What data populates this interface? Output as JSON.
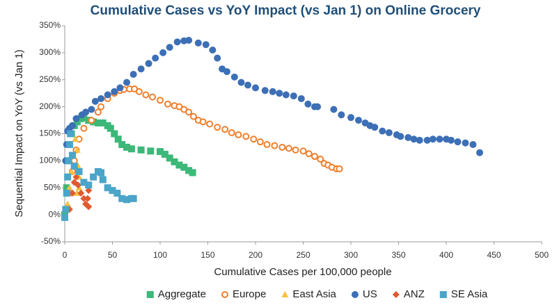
{
  "chart_data": {
    "type": "scatter",
    "title": "Cumulative Cases vs YoY Impact (vs Jan 1) on Online Grocery",
    "x_label": "Cumulative Cases per 100,000 people",
    "y_label": "Sequential Impact on YoY (vs Jan 1)",
    "xlim": [
      0,
      500
    ],
    "xticks": [
      0,
      50,
      100,
      150,
      200,
      250,
      300,
      350,
      400,
      450,
      500
    ],
    "ylim": [
      -50,
      350
    ],
    "yticks": [
      {
        "value": -50,
        "label": "-50%"
      },
      {
        "value": 0,
        "label": "0%"
      },
      {
        "value": 50,
        "label": "50%"
      },
      {
        "value": 100,
        "label": "100%"
      },
      {
        "value": 150,
        "label": "150%"
      },
      {
        "value": 200,
        "label": "200%"
      },
      {
        "value": 250,
        "label": "250%"
      },
      {
        "value": 300,
        "label": "300%"
      },
      {
        "value": 350,
        "label": "350%"
      }
    ],
    "grid": false,
    "legend": "bottom",
    "series": [
      {
        "name": "Aggregate",
        "color": "#3cb878",
        "marker": "square",
        "x": [
          0,
          2,
          3,
          5,
          7,
          10,
          13,
          17,
          20,
          25,
          30,
          35,
          40,
          45,
          48,
          52,
          56,
          60,
          65,
          70,
          80,
          90,
          100,
          105,
          110,
          115,
          120,
          125,
          130,
          134
        ],
        "values": [
          0,
          50,
          100,
          130,
          150,
          165,
          172,
          178,
          180,
          175,
          172,
          170,
          170,
          165,
          160,
          150,
          140,
          130,
          125,
          122,
          120,
          118,
          117,
          112,
          105,
          98,
          92,
          88,
          82,
          78
        ]
      },
      {
        "name": "Europe",
        "color": "#f07f2c",
        "marker": "circle-open",
        "x": [
          2,
          5,
          8,
          10,
          12,
          15,
          20,
          28,
          35,
          38,
          45,
          52,
          58,
          62,
          68,
          73,
          78,
          85,
          92,
          100,
          108,
          115,
          120,
          125,
          130,
          135,
          140,
          145,
          152,
          160,
          168,
          175,
          182,
          190,
          198,
          205,
          212,
          220,
          228,
          235,
          242,
          250,
          256,
          262,
          268,
          272,
          276,
          280,
          285,
          288
        ],
        "values": [
          10,
          40,
          80,
          100,
          120,
          140,
          160,
          175,
          190,
          200,
          215,
          225,
          230,
          232,
          233,
          233,
          228,
          222,
          218,
          212,
          205,
          202,
          200,
          195,
          190,
          182,
          175,
          172,
          168,
          162,
          158,
          152,
          148,
          145,
          140,
          135,
          130,
          128,
          125,
          123,
          120,
          118,
          113,
          108,
          103,
          95,
          92,
          88,
          85,
          85
        ]
      },
      {
        "name": "East Asia",
        "color": "#f5c242",
        "marker": "triangle",
        "x": [
          3,
          5,
          7,
          9,
          11,
          13,
          14,
          15,
          15,
          13
        ],
        "values": [
          20,
          50,
          80,
          110,
          140,
          120,
          90,
          70,
          50,
          40
        ]
      },
      {
        "name": "US",
        "color": "#3c6fb6",
        "marker": "circle",
        "x": [
          1,
          2,
          3,
          5,
          8,
          12,
          18,
          22,
          28,
          32,
          38,
          45,
          52,
          58,
          65,
          72,
          80,
          88,
          95,
          103,
          110,
          118,
          125,
          130,
          140,
          148,
          155,
          160,
          165,
          170,
          178,
          185,
          192,
          200,
          210,
          218,
          225,
          232,
          240,
          248,
          255,
          262,
          265,
          282,
          290,
          300,
          308,
          315,
          320,
          325,
          333,
          340,
          348,
          352,
          360,
          366,
          372,
          380,
          386,
          393,
          400,
          405,
          412,
          420,
          428,
          435
        ],
        "values": [
          100,
          130,
          155,
          160,
          165,
          178,
          185,
          190,
          195,
          210,
          215,
          222,
          228,
          235,
          245,
          260,
          270,
          280,
          290,
          300,
          310,
          320,
          322,
          323,
          318,
          315,
          305,
          290,
          270,
          265,
          255,
          245,
          240,
          235,
          230,
          228,
          225,
          222,
          220,
          215,
          205,
          200,
          200,
          195,
          185,
          180,
          175,
          170,
          165,
          162,
          155,
          152,
          148,
          145,
          143,
          140,
          138,
          138,
          140,
          140,
          140,
          138,
          135,
          133,
          130,
          115
        ]
      },
      {
        "name": "ANZ",
        "color": "#e05a30",
        "marker": "diamond",
        "x": [
          5,
          8,
          10,
          12,
          14,
          17,
          20,
          22,
          24,
          25,
          25
        ],
        "values": [
          10,
          40,
          60,
          70,
          55,
          40,
          30,
          20,
          30,
          45,
          15
        ]
      },
      {
        "name": "SE Asia",
        "color": "#4aa5c9",
        "marker": "square",
        "x": [
          0,
          1,
          2,
          3,
          4,
          5,
          6,
          8,
          10,
          15,
          20,
          25,
          30,
          35,
          38,
          40,
          45,
          50,
          55,
          60,
          65,
          70,
          72
        ],
        "values": [
          -5,
          10,
          40,
          70,
          100,
          130,
          150,
          110,
          90,
          80,
          60,
          55,
          70,
          80,
          78,
          65,
          50,
          45,
          40,
          30,
          28,
          30,
          30
        ]
      }
    ]
  }
}
